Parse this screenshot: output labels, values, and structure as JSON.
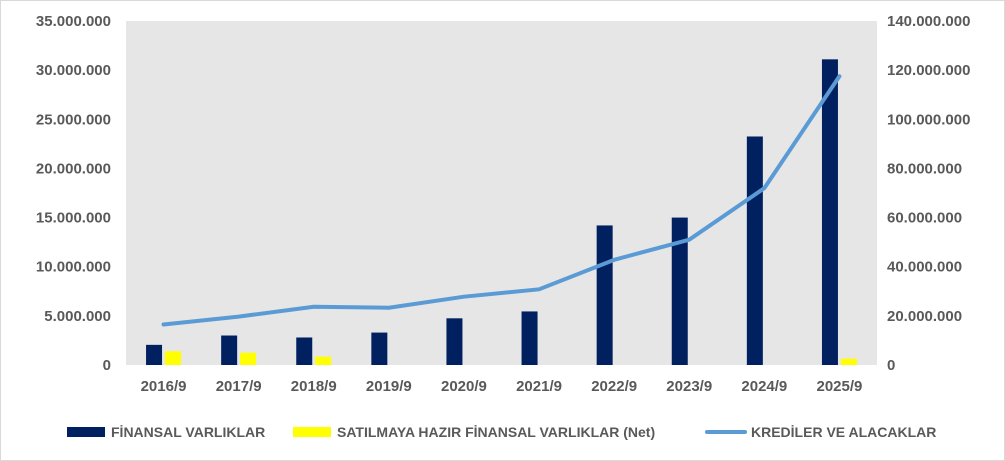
{
  "chart_data": {
    "type": "bar",
    "categories": [
      "2016/9",
      "2017/9",
      "2018/9",
      "2019/9",
      "2020/9",
      "2021/9",
      "2022/9",
      "2023/9",
      "2024/9",
      "2025/9"
    ],
    "left_axis": {
      "min": 0,
      "max": 35000000,
      "step": 5000000,
      "tick_labels": [
        "0",
        "5.000.000",
        "10.000.000",
        "15.000.000",
        "20.000.000",
        "25.000.000",
        "30.000.000",
        "35.000.000"
      ]
    },
    "right_axis": {
      "min": 0,
      "max": 140000000,
      "step": 20000000,
      "tick_labels": [
        "0",
        "20.000.000",
        "40.000.000",
        "60.000.000",
        "80.000.000",
        "100.000.000",
        "120.000.000",
        "140.000.000"
      ]
    },
    "grid": false,
    "legend_position": "bottom",
    "series": [
      {
        "name": "FİNANSAL VARLIKLAR",
        "type": "bar",
        "axis": "left",
        "color": "#002060",
        "values": [
          2050000,
          3000000,
          2800000,
          3300000,
          4750000,
          5450000,
          14200000,
          15000000,
          23250000,
          31100000
        ]
      },
      {
        "name": "SATILMAYA HAZIR FİNANSAL VARLIKLAR (Net)",
        "type": "bar",
        "axis": "left",
        "color": "#ffff00",
        "values": [
          1400000,
          1250000,
          850000,
          null,
          null,
          null,
          null,
          null,
          null,
          650000
        ]
      },
      {
        "name": "KREDİLER VE ALACAKLAR",
        "type": "line",
        "axis": "right",
        "color": "#5b9bd5",
        "values": [
          16500000,
          19700000,
          23700000,
          23300000,
          27800000,
          30800000,
          42800000,
          51000000,
          72000000,
          117500000
        ]
      }
    ]
  }
}
